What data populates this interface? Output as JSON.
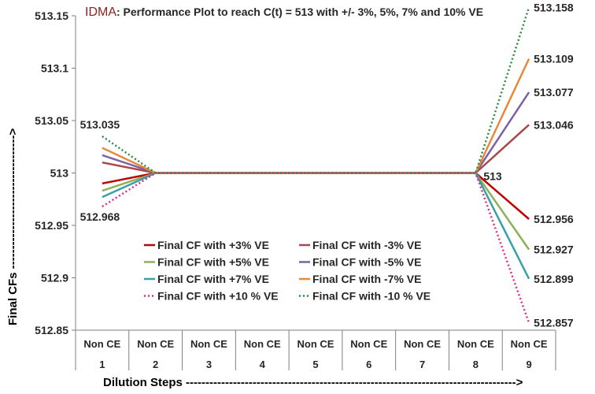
{
  "chart_data": {
    "type": "line",
    "title_prefix": "IDMA",
    "title_rest": ": Performance Plot to reach C(t) = 513 with +/- 3%, 5%, 7% and 10% VE",
    "ylabel": "Final CFs ---------------------------------->",
    "xlabel": "Dilution Steps ------------------------------------------------------------------------------------>",
    "ylim": [
      512.85,
      513.15
    ],
    "yticks": [
      "513.15",
      "513.1",
      "513.05",
      "513",
      "512.95",
      "512.9",
      "512.85"
    ],
    "categories": [
      {
        "top": "Non CE",
        "bottom": "1"
      },
      {
        "top": "Non CE",
        "bottom": "2"
      },
      {
        "top": "Non CE",
        "bottom": "3"
      },
      {
        "top": "Non CE",
        "bottom": "4"
      },
      {
        "top": "Non CE",
        "bottom": "5"
      },
      {
        "top": "Non CE",
        "bottom": "6"
      },
      {
        "top": "Non CE",
        "bottom": "7"
      },
      {
        "top": "Non CE",
        "bottom": "8"
      },
      {
        "top": "Non CE",
        "bottom": "9"
      }
    ],
    "series": [
      {
        "name": "Final CF with +3% VE",
        "color": "#C00000",
        "dash": "solid",
        "values": [
          512.99,
          513,
          513,
          513,
          513,
          513,
          513,
          513,
          512.956
        ]
      },
      {
        "name": "Final CF with -3% VE",
        "color": "#A84848",
        "dash": "solid",
        "values": [
          513.01,
          513,
          513,
          513,
          513,
          513,
          513,
          513,
          513.046
        ]
      },
      {
        "name": "Final CF with +5% VE",
        "color": "#8FB05A",
        "dash": "solid",
        "values": [
          512.983,
          513,
          513,
          513,
          513,
          513,
          513,
          513,
          512.927
        ]
      },
      {
        "name": "Final CF with -5% VE",
        "color": "#7B62A8",
        "dash": "solid",
        "values": [
          513.017,
          513,
          513,
          513,
          513,
          513,
          513,
          513,
          513.077
        ]
      },
      {
        "name": "Final CF with +7% VE",
        "color": "#3AA0A8",
        "dash": "solid",
        "values": [
          512.977,
          513,
          513,
          513,
          513,
          513,
          513,
          513,
          512.899
        ]
      },
      {
        "name": "Final CF with -7% VE",
        "color": "#E8893A",
        "dash": "solid",
        "values": [
          513.024,
          513,
          513,
          513,
          513,
          513,
          513,
          513,
          513.109
        ]
      },
      {
        "name": "Final CF with +10 % VE",
        "color": "#D6308A",
        "dash": "dotted",
        "values": [
          512.968,
          513,
          513,
          513,
          513,
          513,
          513,
          513,
          512.857
        ]
      },
      {
        "name": "Final CF with -10 % VE",
        "color": "#2E8B3E",
        "dash": "dotted",
        "values": [
          513.035,
          513,
          513,
          513,
          513,
          513,
          513,
          513,
          513.158
        ]
      }
    ],
    "data_labels": [
      {
        "text": "513.035",
        "x_index": 0,
        "value": 513.035
      },
      {
        "text": "512.968",
        "x_index": 0,
        "value": 512.968
      },
      {
        "text": "513",
        "x_index": 7,
        "value": 513
      },
      {
        "text": "513.158",
        "x_index": 8,
        "value": 513.158
      },
      {
        "text": "513.109",
        "x_index": 8,
        "value": 513.109
      },
      {
        "text": "513.077",
        "x_index": 8,
        "value": 513.077
      },
      {
        "text": "513.046",
        "x_index": 8,
        "value": 513.046
      },
      {
        "text": "512.956",
        "x_index": 8,
        "value": 512.956
      },
      {
        "text": "512.927",
        "x_index": 8,
        "value": 512.927
      },
      {
        "text": "512.899",
        "x_index": 8,
        "value": 512.899
      },
      {
        "text": "512.857",
        "x_index": 8,
        "value": 512.857
      }
    ],
    "legend_placement": "bottom-center inside plot",
    "grid": false
  }
}
